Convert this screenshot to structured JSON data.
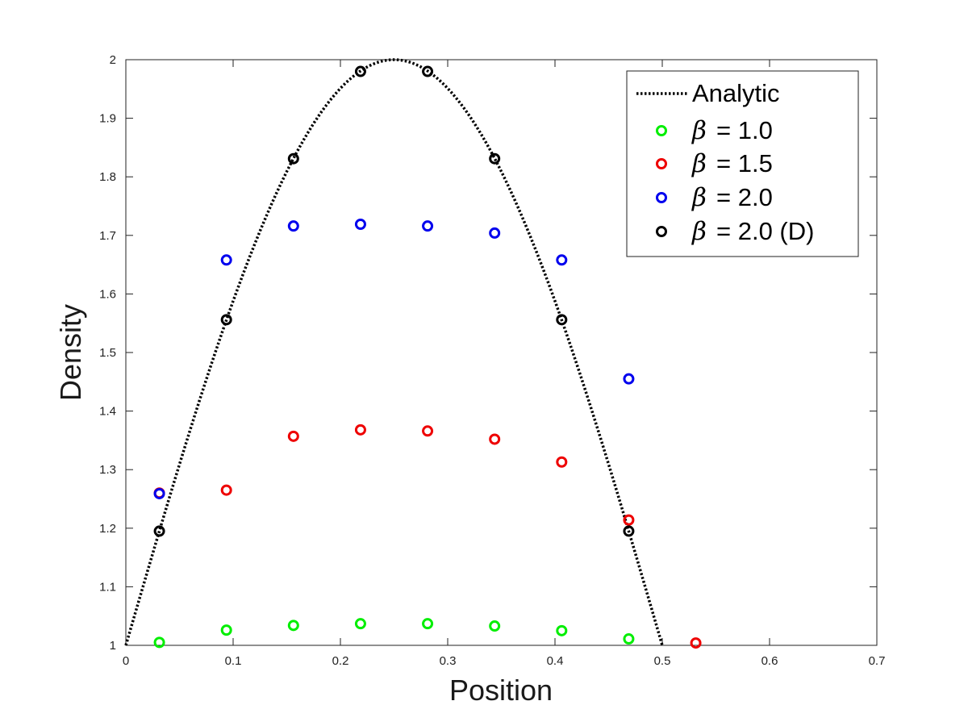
{
  "chart_data": {
    "type": "scatter",
    "xlabel": "Position",
    "ylabel": "Density",
    "xlim": [
      0,
      0.7
    ],
    "ylim": [
      1,
      2
    ],
    "x_ticks": [
      "0",
      "0.1",
      "0.2",
      "0.3",
      "0.4",
      "0.5",
      "0.6",
      "0.7"
    ],
    "y_ticks": [
      "1",
      "1.1",
      "1.2",
      "1.3",
      "1.4",
      "1.5",
      "1.6",
      "1.7",
      "1.8",
      "1.9",
      "2"
    ],
    "grid": false,
    "legend_position": "top-right",
    "analytic": {
      "name": "Analytic",
      "style": "dotted",
      "color": "#000000",
      "x": [
        0,
        0.025,
        0.05,
        0.075,
        0.1,
        0.125,
        0.15,
        0.175,
        0.2,
        0.225,
        0.25,
        0.275,
        0.3,
        0.325,
        0.35,
        0.375,
        0.4,
        0.425,
        0.45,
        0.475,
        0.5
      ],
      "y": [
        1.0,
        1.156,
        1.309,
        1.454,
        1.588,
        1.707,
        1.809,
        1.891,
        1.951,
        1.988,
        2.0,
        1.988,
        1.951,
        1.891,
        1.809,
        1.707,
        1.588,
        1.454,
        1.309,
        1.156,
        1.0
      ]
    },
    "series": [
      {
        "name": "= 1.0",
        "color": "#00ee00",
        "x": [
          0.03125,
          0.09375,
          0.15625,
          0.21875,
          0.28125,
          0.34375,
          0.40625,
          0.46875
        ],
        "y": [
          1.005,
          1.026,
          1.034,
          1.037,
          1.037,
          1.033,
          1.025,
          1.011
        ]
      },
      {
        "name": "= 1.5",
        "color": "#ee0000",
        "x": [
          0.03125,
          0.09375,
          0.15625,
          0.21875,
          0.28125,
          0.34375,
          0.40625,
          0.46875,
          0.53125
        ],
        "y": [
          1.26,
          1.265,
          1.357,
          1.368,
          1.366,
          1.352,
          1.313,
          1.214,
          1.004
        ]
      },
      {
        "name": "= 2.0",
        "color": "#0000ee",
        "x": [
          0.03125,
          0.09375,
          0.15625,
          0.21875,
          0.28125,
          0.34375,
          0.40625,
          0.46875
        ],
        "y": [
          1.259,
          1.658,
          1.716,
          1.719,
          1.716,
          1.704,
          1.658,
          1.455
        ]
      },
      {
        "name": "= 2.0 (D)",
        "color": "#000000",
        "x": [
          0.03125,
          0.09375,
          0.15625,
          0.21875,
          0.28125,
          0.34375,
          0.40625,
          0.46875
        ],
        "y": [
          1.195,
          1.556,
          1.831,
          1.98,
          1.98,
          1.831,
          1.556,
          1.195
        ]
      }
    ],
    "legend": {
      "analytic_label": "Analytic",
      "beta_symbol": "β",
      "entries": [
        "= 1.0",
        "= 1.5",
        "= 2.0",
        "= 2.0 (D)"
      ]
    }
  }
}
